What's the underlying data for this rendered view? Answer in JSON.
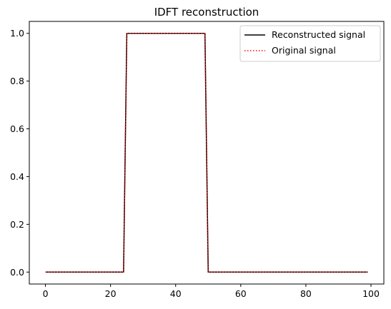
{
  "chart_data": {
    "type": "line",
    "title": "IDFT reconstruction",
    "xlabel": "",
    "ylabel": "",
    "xlim": [
      -4.95,
      103.95
    ],
    "ylim": [
      -0.05,
      1.05
    ],
    "xticks": [
      0,
      20,
      40,
      60,
      80,
      100
    ],
    "yticks": [
      0.0,
      0.2,
      0.4,
      0.6,
      0.8,
      1.0
    ],
    "xtick_labels": [
      "0",
      "20",
      "40",
      "60",
      "80",
      "100"
    ],
    "ytick_labels": [
      "0.0",
      "0.2",
      "0.4",
      "0.6",
      "0.8",
      "1.0"
    ],
    "grid": false,
    "legend_position": "top-right",
    "series": [
      {
        "name": "Reconstructed signal",
        "color": "#000000",
        "style": "solid",
        "x": [
          0,
          24,
          25,
          49,
          50,
          99
        ],
        "y": [
          0,
          0,
          1,
          1,
          0,
          0
        ]
      },
      {
        "name": "Original signal",
        "color": "#ff0000",
        "style": "dotted",
        "x": [
          0,
          24,
          25,
          49,
          50,
          99
        ],
        "y": [
          0,
          0,
          1,
          1,
          0,
          0
        ]
      }
    ]
  }
}
